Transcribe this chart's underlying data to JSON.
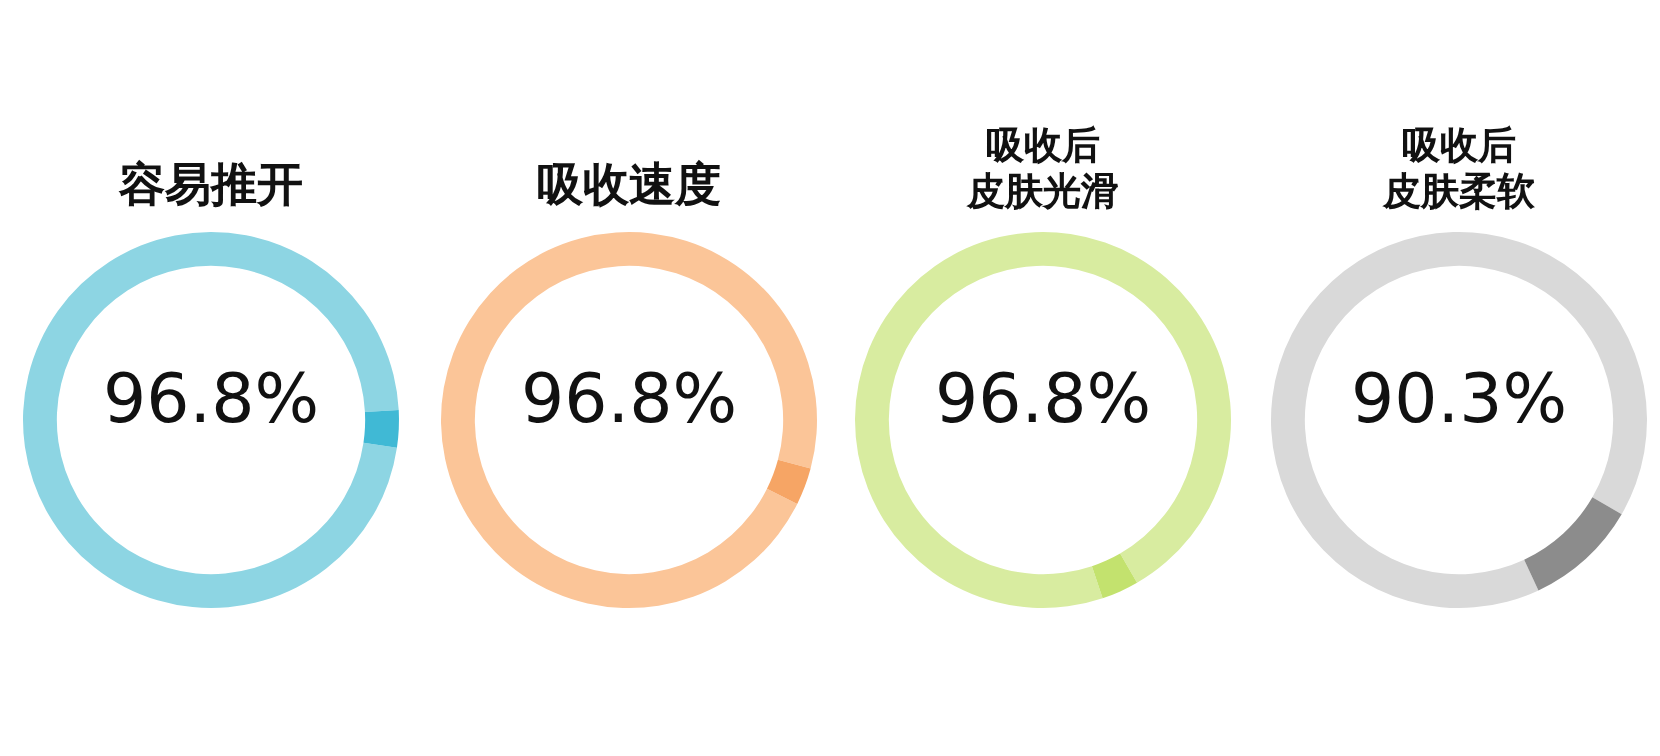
{
  "chart_data": [
    {
      "type": "donut",
      "title": "容易推开",
      "categories": [
        null,
        null
      ],
      "values": [
        96.8,
        3.2
      ],
      "colors": [
        "#8dd5e3",
        "#40b9d5"
      ],
      "annotations": [
        "96.8%"
      ]
    },
    {
      "type": "donut",
      "title": "吸收速度",
      "categories": [
        null,
        null
      ],
      "values": [
        96.8,
        3.2
      ],
      "colors": [
        "#fbc598",
        "#f6a565"
      ],
      "annotations": [
        "96.8%"
      ]
    },
    {
      "type": "donut",
      "title": "吸收后皮肤光滑",
      "categories": [
        null,
        null
      ],
      "values": [
        96.8,
        3.2
      ],
      "colors": [
        "#d8eca0",
        "#c3e26e"
      ],
      "annotations": [
        "96.8%"
      ]
    },
    {
      "type": "donut",
      "title": "吸收后皮肤柔软",
      "categories": [
        null,
        null
      ],
      "values": [
        90.3,
        9.7
      ],
      "colors": [
        "#d9d9d9",
        "#8c8c8c"
      ],
      "annotations": [
        "90.3%"
      ]
    }
  ]
}
